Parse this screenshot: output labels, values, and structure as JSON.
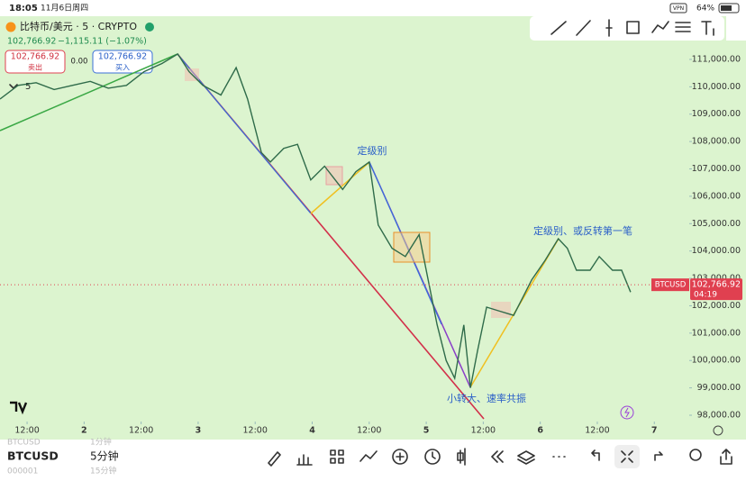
{
  "status_bar": {
    "time": "18:05",
    "date": "11月6日周四",
    "vpn": "VPN",
    "battery": "64%"
  },
  "header": {
    "symbol": "比特币/美元 · 5 · CRYPTO",
    "price": "102,766.92",
    "change": "−1,115.11 (−1.07%)",
    "sell_price": "102,766.92",
    "sell_label": "卖出",
    "spread": "0.00",
    "buy_price": "102,766.92",
    "buy_label": "买入",
    "interval": "5"
  },
  "chart_data": {
    "type": "line",
    "x": [
      -5.7,
      -1.9,
      1.9,
      5.7,
      9.5,
      13.3,
      17.1,
      20.9,
      24.6,
      28.4,
      31.7,
      34.1,
      37.0,
      40.8,
      44.0,
      46.4,
      49.3,
      51.2,
      54.0,
      56.9,
      59.7,
      62.6,
      66.4,
      69.2,
      72.0,
      73.9,
      76.8,
      79.6,
      82.5,
      84.4,
      86.3,
      88.2,
      90.0,
      91.9,
      93.3,
      94.8,
      96.7,
      99.5,
      102.4,
      104.3,
      106.2,
      109.0,
      111.8,
      113.7,
      115.6,
      118.5,
      120.4,
      123.2,
      125.1,
      127.0
    ],
    "series": [
      {
        "name": "BTCUSD",
        "color": "#2f6b4a",
        "values": [
          109550,
          110050,
          110150,
          109900,
          110050,
          110200,
          109950,
          110050,
          110550,
          110850,
          111200,
          110550,
          110050,
          109700,
          110700,
          109550,
          107600,
          107250,
          107750,
          107900,
          106600,
          107100,
          106250,
          106900,
          107250,
          104950,
          104100,
          103800,
          104600,
          102950,
          101300,
          100000,
          99350,
          101300,
          99000,
          100350,
          101950,
          101800,
          101650,
          102300,
          102950,
          103650,
          104450,
          104100,
          103300,
          103300,
          103800,
          103300,
          103300,
          102500
        ]
      }
    ],
    "xlim": [
      -5.7,
      138.4
    ],
    "ylim": [
      97770,
      111690
    ],
    "xticks": [
      {
        "value": 0,
        "label": "12:00"
      },
      {
        "value": 12,
        "label": "2"
      },
      {
        "value": 24,
        "label": "12:00"
      },
      {
        "value": 36,
        "label": "3"
      },
      {
        "value": 48,
        "label": "12:00"
      },
      {
        "value": 60,
        "label": "4"
      },
      {
        "value": 72,
        "label": "12:00"
      },
      {
        "value": 84,
        "label": "5"
      },
      {
        "value": 96,
        "label": "12:00"
      },
      {
        "value": 108,
        "label": "6"
      },
      {
        "value": 120,
        "label": "12:00"
      },
      {
        "value": 132,
        "label": "7"
      }
    ],
    "yticks": [
      {
        "value": 98000,
        "label": "98,000.00"
      },
      {
        "value": 99000,
        "label": "99,000.00"
      },
      {
        "value": 100000,
        "label": "100,000.00"
      },
      {
        "value": 101000,
        "label": "101,000.00"
      },
      {
        "value": 102000,
        "label": "102,000.00"
      },
      {
        "value": 103000,
        "label": "103,000.00"
      },
      {
        "value": 104000,
        "label": "104,000.00"
      },
      {
        "value": 105000,
        "label": "105,000.00"
      },
      {
        "value": 106000,
        "label": "106,000.00"
      },
      {
        "value": 107000,
        "label": "107,000.00"
      },
      {
        "value": 108000,
        "label": "108,000.00"
      },
      {
        "value": 109000,
        "label": "109,000.00"
      },
      {
        "value": 110000,
        "label": "110,000.00"
      },
      {
        "value": 111000,
        "label": "111,000.00"
      }
    ],
    "last_price": {
      "value": 102766.92,
      "label": "102,766.92"
    },
    "countdown": "04:19",
    "annotations": [
      "定级别",
      "定级别、或反转第一笔",
      "小转大、速率共振"
    ]
  },
  "bottom_bar": {
    "symbol": "BTCUSD",
    "interval": "5分钟",
    "ghost": [
      "BTCUSD",
      "1分钟",
      "000001",
      "15分钟"
    ]
  }
}
